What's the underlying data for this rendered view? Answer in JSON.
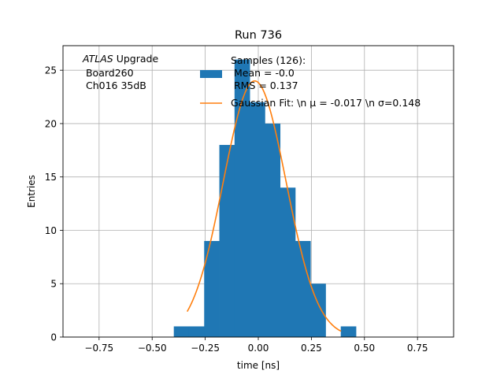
{
  "chart_data": {
    "type": "bar",
    "title": "Run 736",
    "xlabel": "time [ns]",
    "ylabel": "Entries",
    "xlim": [
      -0.92,
      0.92
    ],
    "ylim": [
      0,
      27.3
    ],
    "xticks": [
      -0.75,
      -0.5,
      -0.25,
      0.0,
      0.25,
      0.5,
      0.75
    ],
    "xtick_labels": [
      "−0.75",
      "−0.50",
      "−0.25",
      "0.00",
      "0.25",
      "0.50",
      "0.75"
    ],
    "yticks": [
      0,
      5,
      10,
      15,
      20,
      25
    ],
    "ytick_labels": [
      "0",
      "5",
      "10",
      "15",
      "20",
      "25"
    ],
    "grid": true,
    "annotation": {
      "line1_italic": "ATLAS",
      "line1_rest": " Upgrade",
      "line2": " Board260",
      "line3": " Ch016 35dB"
    },
    "histogram": {
      "name_lines": [
        "Samples (126):",
        " Mean = -0.0",
        " RMS = 0.137"
      ],
      "color": "#1f77b4",
      "bin_edges": [
        -0.398,
        -0.3265,
        -0.255,
        -0.1835,
        -0.112,
        -0.0405,
        0.031,
        0.1025,
        0.174,
        0.2455,
        0.317,
        0.3885,
        0.46
      ],
      "counts": [
        1,
        1,
        9,
        18,
        26,
        22,
        20,
        14,
        9,
        5,
        0,
        1
      ]
    },
    "fit": {
      "label": "Gaussian Fit: \\n μ = -0.017 \\n σ=0.148",
      "color": "#ff7f0e",
      "amplitude": 24.0,
      "mu": -0.017,
      "sigma": 0.148,
      "x_range": [
        -0.335,
        0.39
      ]
    },
    "legend_position": "top-right"
  }
}
